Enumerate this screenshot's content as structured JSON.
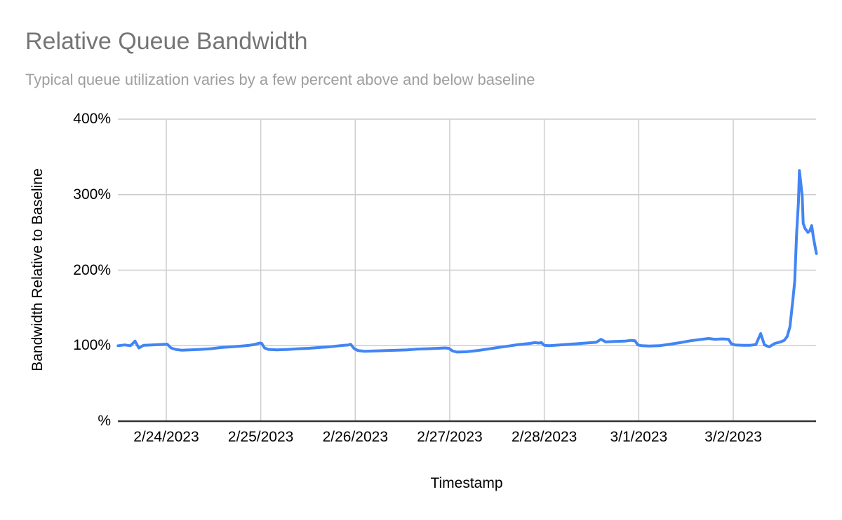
{
  "title": "Relative Queue Bandwidth",
  "subtitle": "Typical queue utilization varies by a few percent above and below baseline",
  "colors": {
    "title": "#757575",
    "subtitle": "#9e9e9e",
    "line": "#4285f4",
    "grid": "#cccccc",
    "axis": "#333333",
    "tick_text": "#000000"
  },
  "chart_data": {
    "type": "line",
    "title": "Relative Queue Bandwidth",
    "subtitle": "Typical queue utilization varies by a few percent above and below baseline",
    "xlabel": "Timestamp",
    "ylabel": "Bandwidth Relative to Baseline",
    "grid": true,
    "legend_position": "none",
    "ylim": [
      0,
      400
    ],
    "y_ticks": [
      {
        "value": 0,
        "label": "%"
      },
      {
        "value": 100,
        "label": "100%"
      },
      {
        "value": 200,
        "label": "200%"
      },
      {
        "value": 300,
        "label": "300%"
      },
      {
        "value": 400,
        "label": "400%"
      }
    ],
    "x_unit": "days since 2/23/2023 00:00",
    "x_domain_days": [
      0.488,
      7.876
    ],
    "x_ticks": [
      {
        "day": 1,
        "label": "2/24/2023"
      },
      {
        "day": 2,
        "label": "2/25/2023"
      },
      {
        "day": 3,
        "label": "2/26/2023"
      },
      {
        "day": 4,
        "label": "2/27/2023"
      },
      {
        "day": 5,
        "label": "2/28/2023"
      },
      {
        "day": 6,
        "label": "3/1/2023"
      },
      {
        "day": 7,
        "label": "3/2/2023"
      }
    ],
    "line_color": "#4285f4",
    "series": [
      {
        "name": "Bandwidth Relative to Baseline (%)",
        "points": [
          [
            0.49,
            100
          ],
          [
            0.56,
            101
          ],
          [
            0.62,
            100
          ],
          [
            0.67,
            106
          ],
          [
            0.71,
            97
          ],
          [
            0.76,
            100.5
          ],
          [
            0.84,
            101
          ],
          [
            0.93,
            101.5
          ],
          [
            1.01,
            102
          ],
          [
            1.05,
            97
          ],
          [
            1.1,
            95
          ],
          [
            1.16,
            94
          ],
          [
            1.25,
            94.5
          ],
          [
            1.36,
            95
          ],
          [
            1.47,
            96
          ],
          [
            1.58,
            97.5
          ],
          [
            1.69,
            98.5
          ],
          [
            1.8,
            99.5
          ],
          [
            1.88,
            100.5
          ],
          [
            1.93,
            101.5
          ],
          [
            1.99,
            103.5
          ],
          [
            2.01,
            103
          ],
          [
            2.04,
            97
          ],
          [
            2.08,
            95
          ],
          [
            2.17,
            94.5
          ],
          [
            2.29,
            95
          ],
          [
            2.4,
            96
          ],
          [
            2.51,
            96.5
          ],
          [
            2.62,
            97.5
          ],
          [
            2.73,
            98.5
          ],
          [
            2.8,
            99.5
          ],
          [
            2.88,
            100.5
          ],
          [
            2.93,
            101
          ],
          [
            2.95,
            102
          ],
          [
            2.99,
            96
          ],
          [
            3.03,
            93.5
          ],
          [
            3.1,
            92.5
          ],
          [
            3.21,
            93
          ],
          [
            3.32,
            93.5
          ],
          [
            3.44,
            94
          ],
          [
            3.55,
            94.5
          ],
          [
            3.66,
            95.5
          ],
          [
            3.77,
            96
          ],
          [
            3.88,
            96.5
          ],
          [
            3.95,
            97
          ],
          [
            3.99,
            96.5
          ],
          [
            4.03,
            93
          ],
          [
            4.08,
            91.5
          ],
          [
            4.18,
            92
          ],
          [
            4.29,
            93.5
          ],
          [
            4.4,
            95.5
          ],
          [
            4.51,
            97.5
          ],
          [
            4.62,
            99.5
          ],
          [
            4.73,
            101.5
          ],
          [
            4.85,
            103
          ],
          [
            4.9,
            104
          ],
          [
            4.94,
            103.5
          ],
          [
            4.97,
            104
          ],
          [
            5.0,
            100.5
          ],
          [
            5.05,
            100
          ],
          [
            5.11,
            100.5
          ],
          [
            5.22,
            101.5
          ],
          [
            5.33,
            102.5
          ],
          [
            5.44,
            103.5
          ],
          [
            5.55,
            104.5
          ],
          [
            5.6,
            108.5
          ],
          [
            5.65,
            105
          ],
          [
            5.74,
            105.5
          ],
          [
            5.85,
            106
          ],
          [
            5.92,
            107
          ],
          [
            5.96,
            106.5
          ],
          [
            5.99,
            101
          ],
          [
            6.03,
            100
          ],
          [
            6.11,
            99.5
          ],
          [
            6.22,
            100
          ],
          [
            6.33,
            102
          ],
          [
            6.44,
            104
          ],
          [
            6.55,
            106.5
          ],
          [
            6.67,
            108.5
          ],
          [
            6.74,
            109.5
          ],
          [
            6.8,
            108.5
          ],
          [
            6.89,
            109
          ],
          [
            6.95,
            108.5
          ],
          [
            6.98,
            102.5
          ],
          [
            7.02,
            101
          ],
          [
            7.11,
            100.5
          ],
          [
            7.18,
            100.5
          ],
          [
            7.24,
            101.5
          ],
          [
            7.29,
            116
          ],
          [
            7.33,
            101
          ],
          [
            7.38,
            98.5
          ],
          [
            7.44,
            103
          ],
          [
            7.5,
            105
          ],
          [
            7.54,
            107
          ],
          [
            7.57,
            112
          ],
          [
            7.6,
            125
          ],
          [
            7.63,
            160
          ],
          [
            7.65,
            185
          ],
          [
            7.67,
            248
          ],
          [
            7.69,
            290
          ],
          [
            7.7,
            332
          ],
          [
            7.73,
            298
          ],
          [
            7.74,
            262
          ],
          [
            7.76,
            255
          ],
          [
            7.79,
            250
          ],
          [
            7.81,
            252
          ],
          [
            7.83,
            259
          ],
          [
            7.85,
            242
          ],
          [
            7.88,
            222
          ]
        ]
      }
    ]
  }
}
